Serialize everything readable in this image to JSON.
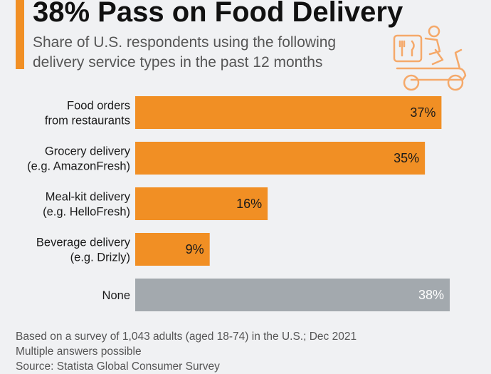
{
  "header": {
    "title": "38% Pass on Food Delivery",
    "subtitle": "Share of U.S. respondents using the following delivery service types in the past 12 months"
  },
  "illustration": {
    "icon": "delivery-scooter-icon"
  },
  "colors": {
    "accent": "#f18f24",
    "bar": "#f18f24",
    "bar_none": "#a3a9ae",
    "icon": "#f5a96a"
  },
  "chart_data": {
    "type": "bar",
    "orientation": "horizontal",
    "title": "38% Pass on Food Delivery",
    "subtitle": "Share of U.S. respondents using the following delivery service types in the past 12 months",
    "categories": [
      [
        "Food orders",
        "from restaurants"
      ],
      [
        "Grocery delivery",
        "(e.g. AmazonFresh)"
      ],
      [
        "Meal-kit delivery",
        "(e.g. HelloFresh)"
      ],
      [
        "Beverage delivery",
        "(e.g. Drizly)"
      ],
      [
        "None"
      ]
    ],
    "values": [
      37,
      35,
      16,
      9,
      38
    ],
    "value_labels": [
      "37%",
      "35%",
      "16%",
      "9%",
      "38%"
    ],
    "unit": "%",
    "xlim": [
      0,
      40
    ],
    "grid": false,
    "highlight": [
      false,
      false,
      false,
      false,
      true
    ]
  },
  "footer": {
    "note1": "Based on a survey of 1,043 adults (aged 18-74) in the U.S.; Dec 2021",
    "note2": "Multiple answers possible",
    "source": "Source: Statista Global Consumer Survey"
  }
}
